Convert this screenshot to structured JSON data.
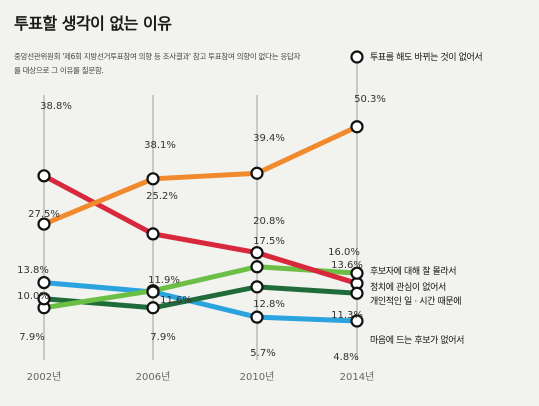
{
  "title": "투표할 생각이 없는 이유",
  "subtitle": "중앙선관위원회 '제6회 지방선거투표참여 의향 등 조사결과' 참고 투표참여 의향이 없다는 응답자를 대상으로 그 이유를 질문함.",
  "chart_data": {
    "type": "line",
    "x": [
      "2002년",
      "2006년",
      "2010년",
      "2014년"
    ],
    "ylim": [
      0,
      55
    ],
    "grid": "vertical",
    "legend": "right",
    "series": [
      {
        "name": "투표를 해도 바뀌는 것이 없어서",
        "color": "#f08a2c",
        "values": [
          27.5,
          38.1,
          39.4,
          50.3
        ],
        "labels": [
          "27.5%",
          "38.1%",
          "39.4%",
          "50.3%"
        ]
      },
      {
        "name": "후보자에 대해 잘 몰라서",
        "color": "#d8283c",
        "values": [
          38.8,
          25.2,
          20.8,
          13.6
        ],
        "labels": [
          "38.8%",
          "25.2%",
          "20.8%",
          "13.6%"
        ]
      },
      {
        "name": "정치에 관심이 없어서",
        "color": "#6bbf45",
        "values": [
          7.9,
          11.9,
          17.5,
          16.0
        ],
        "labels": [
          "7.9%",
          "11.9%",
          "17.5%",
          "16.0%"
        ]
      },
      {
        "name": "개인적인 일 · 시간 때문에",
        "color": "#1f6b3a",
        "values": [
          10.0,
          7.9,
          12.8,
          11.3
        ],
        "labels": [
          "10.0%",
          "7.9%",
          "12.8%",
          "11.3%"
        ]
      },
      {
        "name": "마음에 드는 후보가 없어서",
        "color": "#2aa3df",
        "values": [
          13.8,
          11.6,
          5.7,
          4.8
        ],
        "labels": [
          "13.8%",
          "11.6%",
          "5.7%",
          "4.8%"
        ]
      }
    ]
  }
}
